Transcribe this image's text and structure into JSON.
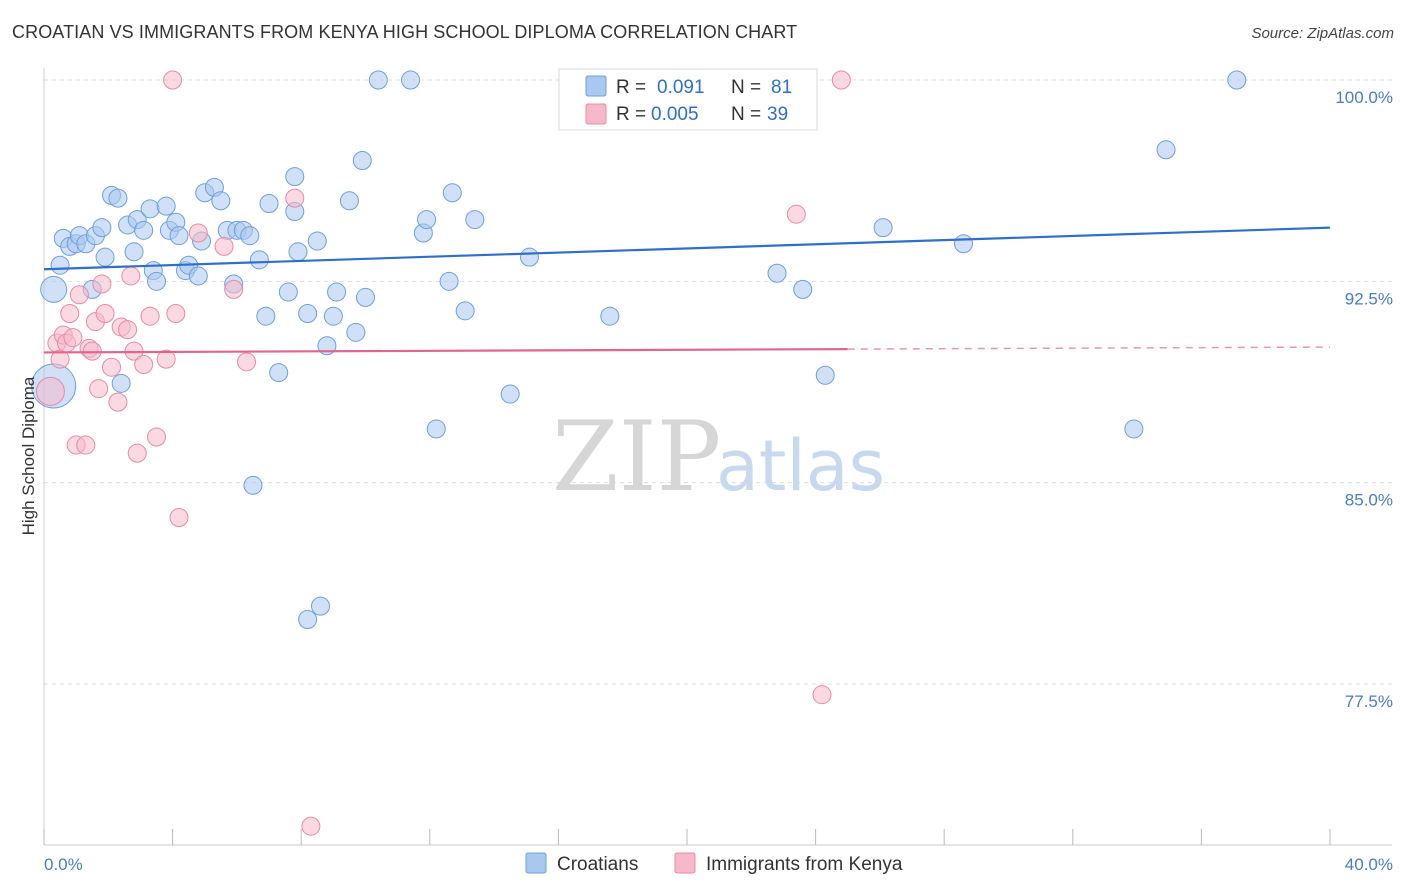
{
  "title": "CROATIAN VS IMMIGRANTS FROM KENYA HIGH SCHOOL DIPLOMA CORRELATION CHART",
  "source": "Source: ZipAtlas.com",
  "watermark": {
    "zip": "ZIP",
    "atlas": "atlas"
  },
  "colors": {
    "blue_fill": "#a9c8f0",
    "blue_stroke": "#6f9fd8",
    "blue_line": "#2f6fcc",
    "pink_fill": "#f6b9cc",
    "pink_stroke": "#e88aa6",
    "pink_line": "#e06690",
    "grid": "#dddddd",
    "tick_label": "#4a7cc7"
  },
  "stats": [
    {
      "r_label": "R = ",
      "r_value": "0.091",
      "n_label": "N = ",
      "n_value": "81",
      "swatch": "blue"
    },
    {
      "r_label": "R = ",
      "r_value": "0.005",
      "n_label": "N = ",
      "n_value": "39",
      "swatch": "pink"
    }
  ],
  "chart_data": {
    "type": "scatter",
    "xlabel": "",
    "ylabel": "High School Diploma",
    "xlim": [
      0,
      40
    ],
    "ylim": [
      71.5,
      101
    ],
    "x_tick_labels": [
      {
        "value": 0,
        "label": "0.0%"
      },
      {
        "value": 40,
        "label": "40.0%"
      }
    ],
    "y_ticks": [
      {
        "value": 100,
        "label": "100.0%"
      },
      {
        "value": 92.5,
        "label": "92.5%"
      },
      {
        "value": 85,
        "label": "85.0%"
      },
      {
        "value": 77.5,
        "label": "77.5%"
      }
    ],
    "grid": true,
    "legend_position": "bottom",
    "series": [
      {
        "name": "Croatians",
        "color": "blue",
        "trend": {
          "x": [
            0,
            40
          ],
          "y": [
            92.95,
            94.5
          ],
          "dashed_from": null
        },
        "points": [
          [
            0.3,
            88.6,
            22
          ],
          [
            0.3,
            92.2,
            13
          ],
          [
            0.5,
            93.1,
            9
          ],
          [
            0.6,
            94.1,
            9
          ],
          [
            0.8,
            93.8,
            9
          ],
          [
            1.0,
            93.9,
            9
          ],
          [
            1.1,
            94.2,
            9
          ],
          [
            1.3,
            93.9,
            9
          ],
          [
            1.5,
            92.2,
            9
          ],
          [
            1.6,
            94.2,
            9
          ],
          [
            1.8,
            94.5,
            9
          ],
          [
            1.9,
            93.4,
            9
          ],
          [
            2.1,
            95.7,
            9
          ],
          [
            2.3,
            95.6,
            9
          ],
          [
            2.4,
            88.7,
            9
          ],
          [
            2.6,
            94.6,
            9
          ],
          [
            2.8,
            93.6,
            9
          ],
          [
            2.9,
            94.8,
            9
          ],
          [
            3.1,
            94.4,
            9
          ],
          [
            3.3,
            95.2,
            9
          ],
          [
            3.4,
            92.9,
            9
          ],
          [
            3.5,
            92.5,
            9
          ],
          [
            3.8,
            95.3,
            9
          ],
          [
            3.9,
            94.4,
            9
          ],
          [
            4.1,
            94.7,
            9
          ],
          [
            4.2,
            94.2,
            9
          ],
          [
            4.4,
            92.9,
            9
          ],
          [
            4.5,
            93.1,
            9
          ],
          [
            4.8,
            92.7,
            9
          ],
          [
            4.9,
            94.0,
            9
          ],
          [
            5.0,
            95.8,
            9
          ],
          [
            5.3,
            96.0,
            9
          ],
          [
            5.5,
            95.5,
            9
          ],
          [
            5.7,
            94.4,
            9
          ],
          [
            5.9,
            92.4,
            9
          ],
          [
            6.0,
            94.4,
            9
          ],
          [
            6.2,
            94.4,
            9
          ],
          [
            6.4,
            94.2,
            9
          ],
          [
            6.5,
            84.9,
            9
          ],
          [
            6.7,
            93.3,
            9
          ],
          [
            6.9,
            91.2,
            9
          ],
          [
            7.0,
            95.4,
            9
          ],
          [
            7.3,
            89.1,
            9
          ],
          [
            7.6,
            92.1,
            9
          ],
          [
            7.8,
            95.1,
            9
          ],
          [
            7.8,
            96.4,
            9
          ],
          [
            7.9,
            93.6,
            9
          ],
          [
            8.2,
            91.3,
            9
          ],
          [
            8.2,
            79.9,
            9
          ],
          [
            8.5,
            94.0,
            9
          ],
          [
            8.6,
            80.4,
            9
          ],
          [
            8.8,
            90.1,
            9
          ],
          [
            9.0,
            91.2,
            9
          ],
          [
            9.1,
            92.1,
            9
          ],
          [
            9.5,
            95.5,
            9
          ],
          [
            9.7,
            90.6,
            9
          ],
          [
            9.9,
            97.0,
            9
          ],
          [
            10.0,
            91.9,
            9
          ],
          [
            10.4,
            100.0,
            9
          ],
          [
            11.4,
            100.0,
            9
          ],
          [
            11.8,
            94.3,
            9
          ],
          [
            11.9,
            94.8,
            9
          ],
          [
            12.2,
            87.0,
            9
          ],
          [
            12.6,
            92.5,
            9
          ],
          [
            12.7,
            95.8,
            9
          ],
          [
            13.1,
            91.4,
            9
          ],
          [
            13.4,
            94.8,
            9
          ],
          [
            14.5,
            88.3,
            9
          ],
          [
            15.1,
            93.4,
            9
          ],
          [
            16.9,
            99.0,
            9
          ],
          [
            17.6,
            91.2,
            9
          ],
          [
            18.0,
            100.0,
            9
          ],
          [
            21.9,
            100.0,
            9
          ],
          [
            22.8,
            92.8,
            9
          ],
          [
            23.6,
            92.2,
            9
          ],
          [
            24.3,
            89.0,
            9
          ],
          [
            26.1,
            94.5,
            9
          ],
          [
            28.6,
            93.9,
            9
          ],
          [
            33.9,
            87.0,
            9
          ],
          [
            34.9,
            97.4,
            9
          ],
          [
            37.1,
            100.0,
            9
          ]
        ]
      },
      {
        "name": "Immigrants from Kenya",
        "color": "pink",
        "trend": {
          "x": [
            0,
            40
          ],
          "y": [
            89.85,
            90.05
          ],
          "dashed_from": 25
        },
        "points": [
          [
            0.2,
            88.4,
            14
          ],
          [
            0.4,
            90.2,
            9
          ],
          [
            0.5,
            89.6,
            9
          ],
          [
            0.6,
            90.5,
            9
          ],
          [
            0.7,
            90.2,
            9
          ],
          [
            0.8,
            91.3,
            9
          ],
          [
            0.9,
            90.4,
            9
          ],
          [
            1.0,
            86.4,
            9
          ],
          [
            1.1,
            92.0,
            9
          ],
          [
            1.3,
            86.4,
            9
          ],
          [
            1.4,
            90.0,
            9
          ],
          [
            1.5,
            89.9,
            9
          ],
          [
            1.6,
            91.0,
            9
          ],
          [
            1.7,
            88.5,
            9
          ],
          [
            1.8,
            92.4,
            9
          ],
          [
            1.9,
            91.3,
            9
          ],
          [
            2.1,
            89.3,
            9
          ],
          [
            2.3,
            88.0,
            9
          ],
          [
            2.4,
            90.8,
            9
          ],
          [
            2.6,
            90.7,
            9
          ],
          [
            2.7,
            92.7,
            9
          ],
          [
            2.8,
            89.9,
            9
          ],
          [
            2.9,
            86.1,
            9
          ],
          [
            3.1,
            89.4,
            9
          ],
          [
            3.3,
            91.2,
            9
          ],
          [
            3.5,
            86.7,
            9
          ],
          [
            3.8,
            89.6,
            9
          ],
          [
            4.0,
            100.0,
            9
          ],
          [
            4.1,
            91.3,
            9
          ],
          [
            4.2,
            83.7,
            9
          ],
          [
            4.8,
            94.3,
            9
          ],
          [
            5.6,
            93.8,
            9
          ],
          [
            5.9,
            92.2,
            9
          ],
          [
            6.3,
            89.5,
            9
          ],
          [
            7.8,
            95.6,
            9
          ],
          [
            8.3,
            72.2,
            9
          ],
          [
            23.4,
            95.0,
            9
          ],
          [
            24.2,
            77.1,
            9
          ],
          [
            24.8,
            100.0,
            9
          ]
        ]
      }
    ]
  }
}
